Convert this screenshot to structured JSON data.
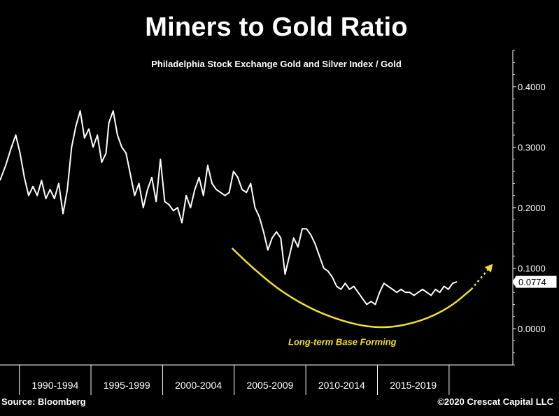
{
  "header": {
    "title": "Miners to Gold Ratio",
    "subtitle": "Philadelphia Stock Exchange Gold and Silver Index / Gold"
  },
  "footer": {
    "source": "Source: Bloomberg",
    "copyright": "©2020 Crescat Capital LLC"
  },
  "chart_data": {
    "type": "line",
    "title": "Miners to Gold Ratio",
    "subtitle": "Philadelphia Stock Exchange Gold and Silver Index / Gold",
    "xlabel": "",
    "ylabel": "",
    "x_tick_labels": [
      "1990-1994",
      "1995-1999",
      "2000-2004",
      "2005-2009",
      "2010-2014",
      "2015-2019"
    ],
    "y_ticks": [
      0.0,
      0.1,
      0.2,
      0.3,
      0.4
    ],
    "y_tick_labels": [
      "0.0000",
      "0.1000",
      "0.2000",
      "0.3000",
      "0.4000"
    ],
    "ylim": [
      -0.06,
      0.46
    ],
    "xlim": [
      1988.6,
      2024.4
    ],
    "grid": false,
    "legend": "none",
    "colors": {
      "background": "#000000",
      "series": "#ffffff",
      "annotation": "#f0e030",
      "axis": "#ffffff"
    },
    "series": [
      {
        "x": [
          1988.6,
          1989.0,
          1989.4,
          1989.7,
          1990.0,
          1990.3,
          1990.6,
          1990.9,
          1991.2,
          1991.5,
          1991.8,
          1992.1,
          1992.4,
          1992.7,
          1993.0,
          1993.3,
          1993.6,
          1993.9,
          1994.2,
          1994.5,
          1994.8,
          1995.1,
          1995.4,
          1995.7,
          1996.0,
          1996.2,
          1996.5,
          1996.8,
          1997.1,
          1997.4,
          1997.7,
          1998.0,
          1998.3,
          1998.6,
          1998.9,
          1999.2,
          1999.5,
          1999.8,
          2000.1,
          2000.4,
          2000.7,
          2001.0,
          2001.3,
          2001.6,
          2001.9,
          2002.2,
          2002.5,
          2002.8,
          2003.1,
          2003.4,
          2003.7,
          2004.0,
          2004.3,
          2004.6,
          2004.9,
          2005.2,
          2005.5,
          2005.8,
          2006.1,
          2006.4,
          2006.7,
          2007.0,
          2007.3,
          2007.6,
          2007.9,
          2008.2,
          2008.5,
          2008.8,
          2009.1,
          2009.4,
          2009.7,
          2010.0,
          2010.3,
          2010.6,
          2010.9,
          2011.2,
          2011.5,
          2011.8,
          2012.1,
          2012.4,
          2012.7,
          2013.0,
          2013.3,
          2013.6,
          2013.9,
          2014.2,
          2014.5,
          2014.8,
          2015.1,
          2015.4,
          2015.7,
          2016.0,
          2016.3,
          2016.6,
          2016.9,
          2017.2,
          2017.5,
          2017.8,
          2018.1,
          2018.4,
          2018.7,
          2019.0,
          2019.3,
          2019.6,
          2019.9,
          2020.2,
          2020.5
        ],
        "values": [
          0.245,
          0.27,
          0.3,
          0.32,
          0.29,
          0.25,
          0.22,
          0.235,
          0.22,
          0.245,
          0.215,
          0.23,
          0.215,
          0.24,
          0.19,
          0.23,
          0.3,
          0.335,
          0.36,
          0.315,
          0.33,
          0.3,
          0.32,
          0.275,
          0.29,
          0.34,
          0.36,
          0.32,
          0.3,
          0.29,
          0.255,
          0.22,
          0.24,
          0.2,
          0.23,
          0.25,
          0.21,
          0.28,
          0.21,
          0.205,
          0.195,
          0.2,
          0.175,
          0.22,
          0.2,
          0.23,
          0.25,
          0.22,
          0.27,
          0.24,
          0.23,
          0.225,
          0.22,
          0.225,
          0.26,
          0.25,
          0.23,
          0.225,
          0.24,
          0.2,
          0.185,
          0.16,
          0.13,
          0.15,
          0.16,
          0.15,
          0.09,
          0.12,
          0.15,
          0.135,
          0.165,
          0.165,
          0.155,
          0.14,
          0.12,
          0.1,
          0.095,
          0.085,
          0.07,
          0.065,
          0.075,
          0.065,
          0.07,
          0.06,
          0.05,
          0.04,
          0.045,
          0.04,
          0.06,
          0.075,
          0.07,
          0.065,
          0.06,
          0.065,
          0.06,
          0.06,
          0.055,
          0.06,
          0.065,
          0.06,
          0.055,
          0.065,
          0.06,
          0.07,
          0.065,
          0.075,
          0.0774
        ]
      }
    ],
    "last_value": 0.0774,
    "last_value_label": "0.0774",
    "annotations": [
      {
        "type": "curve",
        "x": [
          2004.8,
          2007.0,
          2010.0,
          2013.0,
          2015.5,
          2018.0,
          2020.0,
          2021.5
        ],
        "values": [
          0.133,
          0.082,
          0.035,
          0.008,
          0.0,
          0.012,
          0.035,
          0.065
        ],
        "style": "solid"
      },
      {
        "type": "arrow",
        "x": [
          2021.5,
          2023.0
        ],
        "values": [
          0.065,
          0.107
        ],
        "style": "dotted"
      },
      {
        "type": "text",
        "text": "Long-term Base Forming",
        "x": 2012.5,
        "value": -0.027
      }
    ]
  }
}
